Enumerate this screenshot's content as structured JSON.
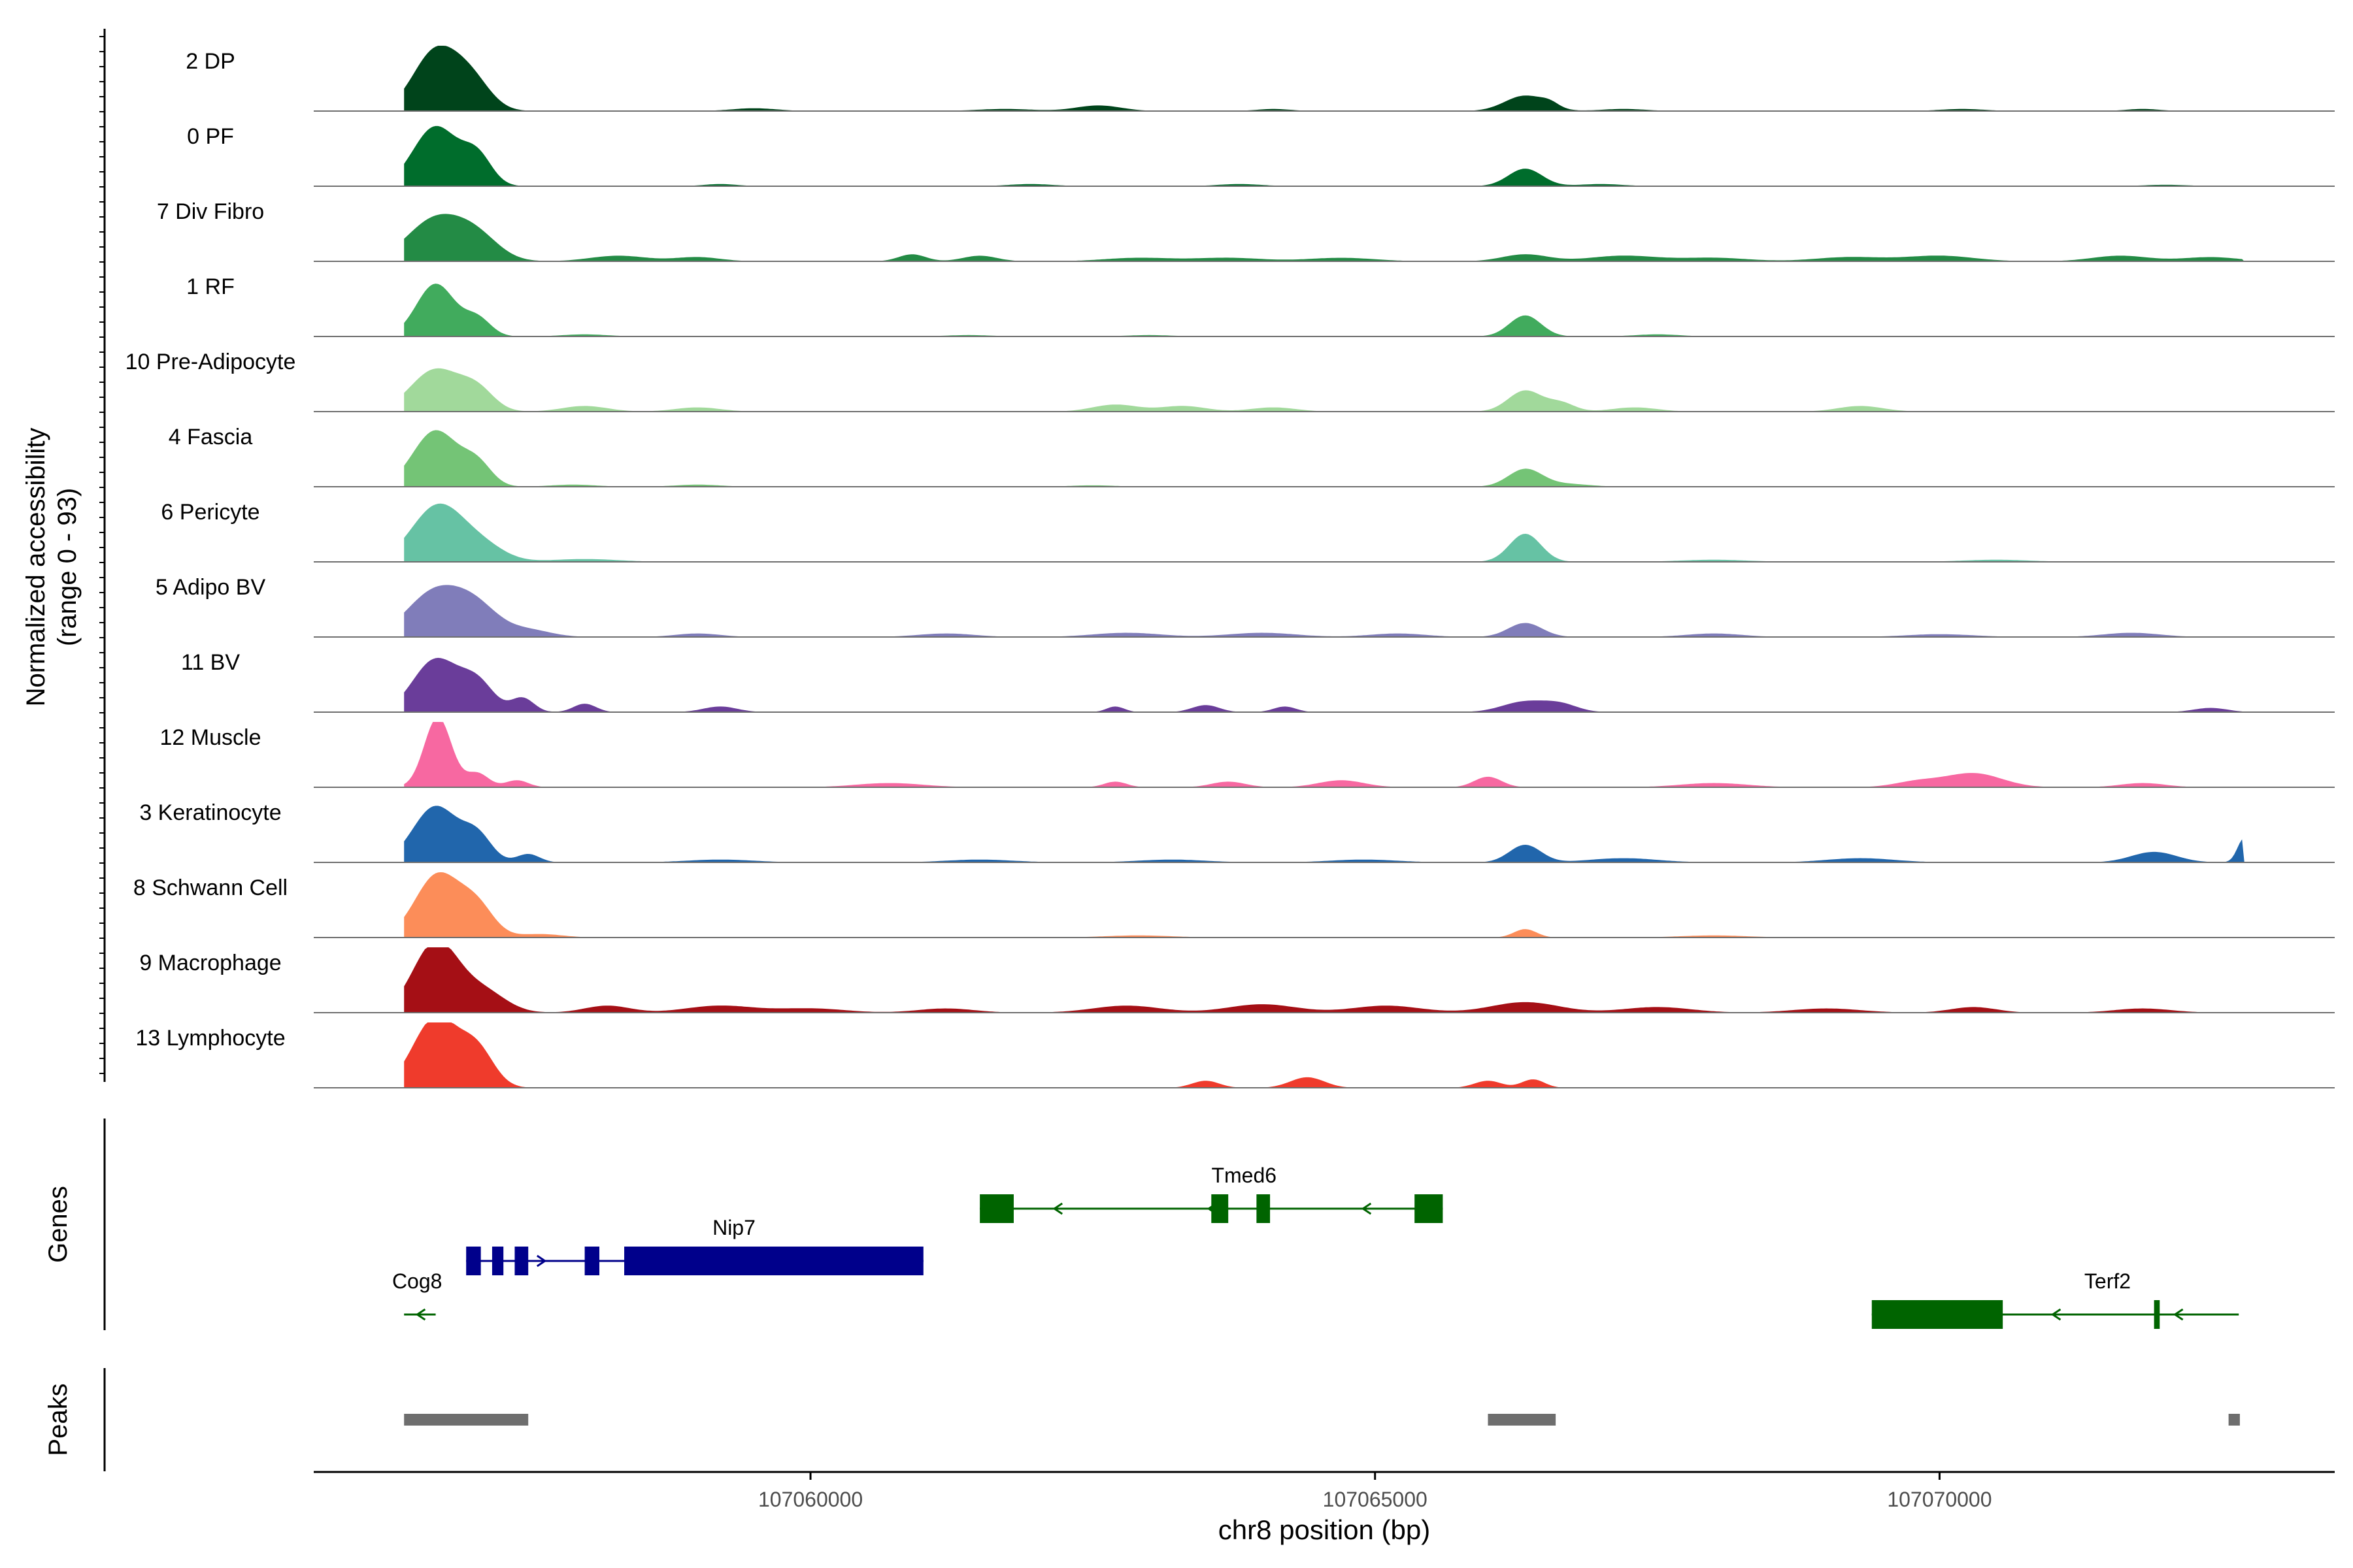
{
  "chart_data": {
    "type": "area",
    "title": "",
    "ylabel_line1": "Normalized accessibility",
    "ylabel_line2": "(range 0 - 93)",
    "xlabel": "chr8 position (bp)",
    "xlim": [
      107055600,
      107073500
    ],
    "ylim": [
      0,
      93
    ],
    "xticks": [
      107060000,
      107065000,
      107070000
    ],
    "tick_labels": [
      "107060000",
      "107065000",
      "107070000"
    ],
    "tracks": [
      {
        "name": "2 DP",
        "color": "#00441b",
        "peaks": [
          [
            107056680,
            85,
            200
          ],
          [
            107057000,
            40,
            170
          ],
          [
            107059500,
            4,
            200
          ],
          [
            107061720,
            3,
            250
          ],
          [
            107062550,
            8,
            200
          ],
          [
            107064100,
            3,
            150
          ],
          [
            107066330,
            22,
            180
          ],
          [
            107066550,
            6,
            80
          ],
          [
            107067200,
            3,
            200
          ],
          [
            107070200,
            3,
            200
          ],
          [
            107071800,
            3,
            150
          ]
        ]
      },
      {
        "name": "0 PF",
        "color": "#006d2c",
        "peaks": [
          [
            107056680,
            85,
            200
          ],
          [
            107057050,
            40,
            130
          ],
          [
            107059200,
            3,
            150
          ],
          [
            107061950,
            3,
            200
          ],
          [
            107063800,
            3,
            200
          ],
          [
            107066330,
            25,
            150
          ],
          [
            107067000,
            3,
            200
          ],
          [
            107072000,
            2,
            200
          ]
        ]
      },
      {
        "name": "7 Div Fibro",
        "color": "#238b45",
        "peaks": [
          [
            107056680,
            60,
            250
          ],
          [
            107057050,
            30,
            200
          ],
          [
            107058300,
            8,
            250
          ],
          [
            107059000,
            6,
            200
          ],
          [
            107060900,
            10,
            120
          ],
          [
            107061500,
            8,
            150
          ],
          [
            107062900,
            5,
            300
          ],
          [
            107063700,
            5,
            300
          ],
          [
            107064700,
            5,
            300
          ],
          [
            107066330,
            10,
            200
          ],
          [
            107067200,
            8,
            300
          ],
          [
            107068000,
            5,
            300
          ],
          [
            107069200,
            6,
            300
          ],
          [
            107070000,
            8,
            300
          ],
          [
            107071600,
            8,
            250
          ],
          [
            107072400,
            6,
            250
          ]
        ]
      },
      {
        "name": "1 RF",
        "color": "#41ab5d",
        "peaks": [
          [
            107056680,
            75,
            170
          ],
          [
            107057050,
            25,
            120
          ],
          [
            107058000,
            3,
            200
          ],
          [
            107061400,
            2,
            200
          ],
          [
            107063000,
            2,
            200
          ],
          [
            107066330,
            30,
            140
          ],
          [
            107067500,
            3,
            200
          ]
        ]
      },
      {
        "name": "10 Pre-Adipocyte",
        "color": "#a1d99b",
        "peaks": [
          [
            107056680,
            60,
            220
          ],
          [
            107057050,
            28,
            150
          ],
          [
            107058000,
            8,
            200
          ],
          [
            107059000,
            6,
            200
          ],
          [
            107062700,
            10,
            200
          ],
          [
            107063300,
            8,
            200
          ],
          [
            107064100,
            6,
            200
          ],
          [
            107066330,
            30,
            150
          ],
          [
            107066650,
            12,
            120
          ],
          [
            107067300,
            6,
            200
          ],
          [
            107069300,
            8,
            200
          ]
        ]
      },
      {
        "name": "4 Fascia",
        "color": "#74c476",
        "peaks": [
          [
            107056680,
            80,
            200
          ],
          [
            107057050,
            30,
            130
          ],
          [
            107057900,
            3,
            200
          ],
          [
            107059000,
            3,
            200
          ],
          [
            107062500,
            2,
            200
          ],
          [
            107066330,
            25,
            150
          ],
          [
            107066700,
            4,
            200
          ]
        ]
      },
      {
        "name": "6 Pericyte",
        "color": "#66c2a4",
        "peaks": [
          [
            107056700,
            80,
            230
          ],
          [
            107057100,
            20,
            200
          ],
          [
            107058000,
            4,
            300
          ],
          [
            107066330,
            40,
            140
          ],
          [
            107068000,
            3,
            300
          ],
          [
            107070500,
            3,
            300
          ]
        ]
      },
      {
        "name": "5 Adipo BV",
        "color": "#807dba",
        "peaks": [
          [
            107056680,
            65,
            250
          ],
          [
            107057050,
            35,
            200
          ],
          [
            107057500,
            10,
            200
          ],
          [
            107059000,
            5,
            200
          ],
          [
            107061200,
            5,
            250
          ],
          [
            107062800,
            6,
            300
          ],
          [
            107064000,
            6,
            300
          ],
          [
            107065200,
            5,
            250
          ],
          [
            107066330,
            20,
            150
          ],
          [
            107068000,
            5,
            250
          ],
          [
            107070000,
            4,
            300
          ],
          [
            107071700,
            6,
            250
          ]
        ]
      },
      {
        "name": "11 BV",
        "color": "#6a3d9a",
        "peaks": [
          [
            107056680,
            75,
            200
          ],
          [
            107057050,
            40,
            150
          ],
          [
            107057450,
            20,
            100
          ],
          [
            107058000,
            12,
            100
          ],
          [
            107059200,
            8,
            150
          ],
          [
            107062700,
            8,
            80
          ],
          [
            107063500,
            10,
            120
          ],
          [
            107064200,
            8,
            100
          ],
          [
            107066330,
            15,
            200
          ],
          [
            107066650,
            10,
            150
          ],
          [
            107072400,
            6,
            150
          ]
        ]
      },
      {
        "name": "12 Muscle",
        "color": "#f768a1",
        "peaks": [
          [
            107056700,
            100,
            120
          ],
          [
            107057050,
            20,
            100
          ],
          [
            107057400,
            10,
            100
          ],
          [
            107060700,
            6,
            300
          ],
          [
            107062700,
            8,
            100
          ],
          [
            107063700,
            8,
            150
          ],
          [
            107064700,
            10,
            200
          ],
          [
            107066000,
            15,
            120
          ],
          [
            107068000,
            6,
            300
          ],
          [
            107069800,
            8,
            200
          ],
          [
            107070300,
            20,
            250
          ],
          [
            107071800,
            6,
            200
          ]
        ]
      },
      {
        "name": "3 Keratinocyte",
        "color": "#2166ac",
        "peaks": [
          [
            107056680,
            80,
            200
          ],
          [
            107057050,
            35,
            130
          ],
          [
            107057500,
            12,
            100
          ],
          [
            107059200,
            4,
            300
          ],
          [
            107061500,
            4,
            300
          ],
          [
            107063200,
            4,
            300
          ],
          [
            107064900,
            4,
            300
          ],
          [
            107066330,
            25,
            140
          ],
          [
            107067200,
            6,
            300
          ],
          [
            107069300,
            6,
            300
          ],
          [
            107071900,
            15,
            200
          ],
          [
            107072700,
            35,
            60
          ]
        ]
      },
      {
        "name": "8 Schwann Cell",
        "color": "#fc8d59",
        "peaks": [
          [
            107056700,
            90,
            200
          ],
          [
            107057050,
            40,
            150
          ],
          [
            107057600,
            5,
            200
          ],
          [
            107062900,
            3,
            300
          ],
          [
            107066330,
            12,
            100
          ],
          [
            107068000,
            3,
            300
          ]
        ]
      },
      {
        "name": "9 Macrophage",
        "color": "#a50f15",
        "peaks": [
          [
            107056680,
            100,
            200
          ],
          [
            107057100,
            30,
            200
          ],
          [
            107058200,
            10,
            200
          ],
          [
            107059200,
            10,
            300
          ],
          [
            107060000,
            6,
            300
          ],
          [
            107061200,
            6,
            250
          ],
          [
            107062800,
            10,
            300
          ],
          [
            107064000,
            12,
            300
          ],
          [
            107065100,
            10,
            300
          ],
          [
            107066330,
            15,
            300
          ],
          [
            107067500,
            8,
            300
          ],
          [
            107069000,
            6,
            300
          ],
          [
            107070300,
            8,
            200
          ],
          [
            107071800,
            6,
            250
          ]
        ]
      },
      {
        "name": "13 Lymphocyte",
        "color": "#ef3b2c",
        "peaks": [
          [
            107056680,
            100,
            200
          ],
          [
            107057050,
            50,
            150
          ],
          [
            107063500,
            10,
            120
          ],
          [
            107064400,
            15,
            150
          ],
          [
            107066000,
            10,
            120
          ],
          [
            107066400,
            12,
            100
          ]
        ]
      }
    ],
    "genes": [
      {
        "name": "Cog8",
        "strand": "-",
        "color": "#006400",
        "start": 107056400,
        "end": 107056680,
        "exons": []
      },
      {
        "name": "Nip7",
        "strand": "+",
        "color": "#00008b",
        "start": 107056950,
        "end": 107061000,
        "exons": [
          [
            107056950,
            107057080
          ],
          [
            107057180,
            107057280
          ],
          [
            107057380,
            107057500
          ],
          [
            107058000,
            107058130
          ],
          [
            107058350,
            107061000
          ]
        ]
      },
      {
        "name": "Tmed6",
        "strand": "-",
        "color": "#006400",
        "start": 107061500,
        "end": 107065600,
        "exons": [
          [
            107061500,
            107061800
          ],
          [
            107063550,
            107063700
          ],
          [
            107063950,
            107064070
          ],
          [
            107065350,
            107065600
          ]
        ]
      },
      {
        "name": "Terf2",
        "strand": "-",
        "color": "#006400",
        "start": 107069400,
        "end": 107072650,
        "exons": [
          [
            107069400,
            107070560
          ],
          [
            107071900,
            107071950
          ]
        ]
      }
    ],
    "peaks": [
      [
        107056400,
        107057500
      ],
      [
        107066000,
        107066600
      ],
      [
        107072560,
        107072660
      ]
    ],
    "panels": {
      "genes": "Genes",
      "peaks": "Peaks"
    }
  }
}
